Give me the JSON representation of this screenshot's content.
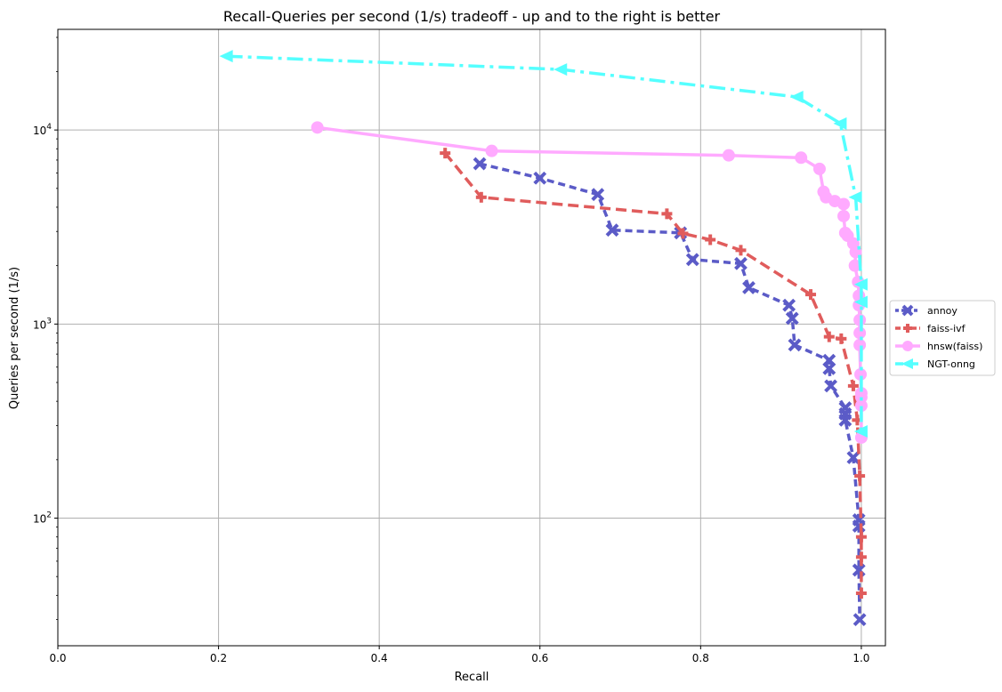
{
  "chart_data": {
    "type": "line",
    "title": "Recall-Queries per second (1/s) tradeoff - up and to the right is better",
    "xlabel": "Recall",
    "ylabel": "Queries per second (1/s)",
    "xlim": [
      0.0,
      1.03
    ],
    "ylim": [
      22,
      33000
    ],
    "yscale": "log",
    "xticks": [
      {
        "value": 0.0,
        "label": "0.0"
      },
      {
        "value": 0.2,
        "label": "0.2"
      },
      {
        "value": 0.4,
        "label": "0.4"
      },
      {
        "value": 0.6,
        "label": "0.6"
      },
      {
        "value": 0.8,
        "label": "0.8"
      },
      {
        "value": 1.0,
        "label": "1.0"
      }
    ],
    "yticks": [
      {
        "value": 100,
        "base": "10",
        "exp": "2"
      },
      {
        "value": 1000,
        "base": "10",
        "exp": "3"
      },
      {
        "value": 10000,
        "base": "10",
        "exp": "4"
      }
    ],
    "grid": true,
    "legend_position": "right-outside",
    "series": [
      {
        "name": "annoy",
        "color": "#5b5bc7",
        "dash": "8,5",
        "marker": "x",
        "points": [
          [
            0.525,
            6700
          ],
          [
            0.6,
            5650
          ],
          [
            0.672,
            4650
          ],
          [
            0.69,
            3050
          ],
          [
            0.775,
            2950
          ],
          [
            0.79,
            2150
          ],
          [
            0.85,
            2050
          ],
          [
            0.86,
            1540
          ],
          [
            0.91,
            1250
          ],
          [
            0.914,
            1070
          ],
          [
            0.917,
            780
          ],
          [
            0.96,
            650
          ],
          [
            0.96,
            590
          ],
          [
            0.962,
            480
          ],
          [
            0.98,
            370
          ],
          [
            0.98,
            345
          ],
          [
            0.98,
            320
          ],
          [
            0.99,
            205
          ],
          [
            0.997,
            98
          ],
          [
            0.997,
            91
          ],
          [
            0.997,
            54
          ],
          [
            0.998,
            30
          ]
        ]
      },
      {
        "name": "faiss-ivf",
        "color": "#e05c5c",
        "dash": "12,6",
        "marker": "plus",
        "points": [
          [
            0.482,
            7600
          ],
          [
            0.527,
            4500
          ],
          [
            0.758,
            3700
          ],
          [
            0.778,
            2930
          ],
          [
            0.812,
            2720
          ],
          [
            0.85,
            2400
          ],
          [
            0.937,
            1420
          ],
          [
            0.96,
            860
          ],
          [
            0.975,
            840
          ],
          [
            0.99,
            480
          ],
          [
            0.995,
            320
          ],
          [
            0.998,
            165
          ],
          [
            1.0,
            80
          ],
          [
            1.0,
            63
          ],
          [
            1.0,
            41
          ]
        ]
      },
      {
        "name": "hnsw(faiss)",
        "color": "#ffaaff",
        "dash": "",
        "marker": "circle",
        "points": [
          [
            0.323,
            10300
          ],
          [
            0.54,
            7800
          ],
          [
            0.835,
            7400
          ],
          [
            0.925,
            7200
          ],
          [
            0.948,
            6300
          ],
          [
            0.953,
            4800
          ],
          [
            0.956,
            4500
          ],
          [
            0.967,
            4300
          ],
          [
            0.978,
            4150
          ],
          [
            0.978,
            3600
          ],
          [
            0.98,
            2950
          ],
          [
            0.983,
            2850
          ],
          [
            0.99,
            2600
          ],
          [
            0.993,
            2350
          ],
          [
            0.992,
            2000
          ],
          [
            0.996,
            1650
          ],
          [
            0.997,
            1400
          ],
          [
            0.997,
            1250
          ],
          [
            0.998,
            1050
          ],
          [
            0.998,
            900
          ],
          [
            0.998,
            780
          ],
          [
            0.999,
            550
          ],
          [
            1.0,
            440
          ],
          [
            1.0,
            420
          ],
          [
            1.0,
            380
          ],
          [
            1.0,
            260
          ]
        ]
      },
      {
        "name": "NGT-onng",
        "color": "#55ffff",
        "dash": "18,6,4,6",
        "marker": "triangle-left",
        "points": [
          [
            0.21,
            24000
          ],
          [
            0.626,
            20500
          ],
          [
            0.92,
            14800
          ],
          [
            0.974,
            10800
          ],
          [
            0.993,
            4500
          ],
          [
            1.0,
            1600
          ],
          [
            1.0,
            1300
          ],
          [
            1.0,
            280
          ]
        ]
      }
    ]
  }
}
